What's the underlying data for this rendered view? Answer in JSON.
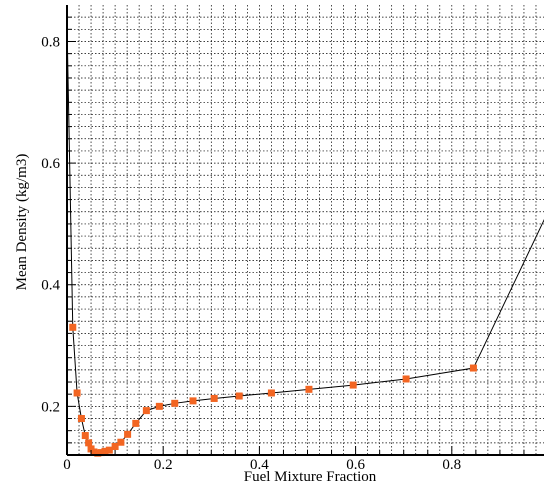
{
  "chart_data": {
    "type": "line",
    "title": "",
    "xlabel": "Fuel Mixture Fraction",
    "ylabel": "Mean Density (kg/m3)",
    "xlim": [
      0,
      1
    ],
    "ylim": [
      0.12,
      0.86
    ],
    "xticks": [
      0,
      0.2,
      0.4,
      0.6,
      0.8
    ],
    "xtick_labels": [
      "0",
      "0.2",
      "0.4",
      "0.6",
      "0.8"
    ],
    "yticks": [
      0.2,
      0.4,
      0.6,
      0.8
    ],
    "ytick_labels": [
      "0.2",
      "0.4",
      "0.6",
      "0.8"
    ],
    "grid": true,
    "legend": "none",
    "line_color": "#000000",
    "marker_color": "#F26522",
    "series": [
      {
        "line": [
          [
            0.0,
            0.83
          ],
          [
            0.012,
            0.33
          ],
          [
            0.021,
            0.222
          ],
          [
            0.03,
            0.18
          ],
          [
            0.038,
            0.152
          ],
          [
            0.045,
            0.14
          ],
          [
            0.05,
            0.13
          ],
          [
            0.056,
            0.125
          ],
          [
            0.064,
            0.123
          ],
          [
            0.071,
            0.124
          ],
          [
            0.079,
            0.126
          ],
          [
            0.088,
            0.128
          ],
          [
            0.1,
            0.134
          ],
          [
            0.112,
            0.141
          ],
          [
            0.126,
            0.154
          ],
          [
            0.143,
            0.172
          ],
          [
            0.165,
            0.193
          ],
          [
            0.192,
            0.2
          ],
          [
            0.224,
            0.205
          ],
          [
            0.262,
            0.209
          ],
          [
            0.306,
            0.213
          ],
          [
            0.358,
            0.217
          ],
          [
            0.425,
            0.222
          ],
          [
            0.503,
            0.228
          ],
          [
            0.595,
            0.235
          ],
          [
            0.705,
            0.245
          ],
          [
            0.845,
            0.263
          ],
          [
            1.0,
            0.52
          ]
        ],
        "markers": [
          [
            0.012,
            0.33
          ],
          [
            0.021,
            0.222
          ],
          [
            0.03,
            0.18
          ],
          [
            0.038,
            0.152
          ],
          [
            0.045,
            0.14
          ],
          [
            0.05,
            0.13
          ],
          [
            0.056,
            0.125
          ],
          [
            0.064,
            0.123
          ],
          [
            0.071,
            0.124
          ],
          [
            0.079,
            0.126
          ],
          [
            0.088,
            0.128
          ],
          [
            0.1,
            0.134
          ],
          [
            0.112,
            0.141
          ],
          [
            0.126,
            0.154
          ],
          [
            0.143,
            0.172
          ],
          [
            0.165,
            0.193
          ],
          [
            0.192,
            0.2
          ],
          [
            0.224,
            0.205
          ],
          [
            0.262,
            0.209
          ],
          [
            0.306,
            0.213
          ],
          [
            0.358,
            0.217
          ],
          [
            0.425,
            0.222
          ],
          [
            0.503,
            0.228
          ],
          [
            0.595,
            0.235
          ],
          [
            0.705,
            0.245
          ],
          [
            0.845,
            0.263
          ]
        ]
      }
    ]
  }
}
